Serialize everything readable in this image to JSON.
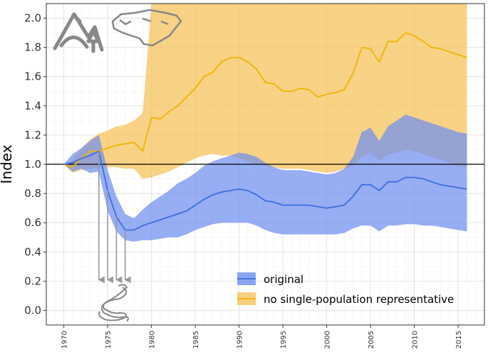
{
  "chart_data": {
    "type": "area",
    "ylabel": "Index",
    "xlabel": "",
    "xlim": [
      1968,
      2018
    ],
    "ylim": [
      -0.1,
      2.1
    ],
    "grid": true,
    "legend_position": "bottom-right",
    "baseline": 1.0,
    "x_ticks": [
      1970,
      1975,
      1980,
      1985,
      1990,
      1995,
      2000,
      2005,
      2010,
      2015
    ],
    "y_ticks": [
      "0.0",
      "0.2",
      "0.4",
      "0.6",
      "0.8",
      "1.0",
      "1.2",
      "1.4",
      "1.6",
      "1.8",
      "2.0"
    ],
    "x": [
      1970,
      1971,
      1972,
      1973,
      1974,
      1975,
      1976,
      1977,
      1978,
      1979,
      1980,
      1981,
      1982,
      1983,
      1984,
      1985,
      1986,
      1987,
      1988,
      1989,
      1990,
      1991,
      1992,
      1993,
      1994,
      1995,
      1996,
      1997,
      1998,
      1999,
      2000,
      2001,
      2002,
      2003,
      2004,
      2005,
      2006,
      2007,
      2008,
      2009,
      2010,
      2011,
      2012,
      2013,
      2014,
      2015,
      2016
    ],
    "series": [
      {
        "name": "original",
        "color": "#6f8ff0",
        "line_color": "#3b6de0",
        "values": [
          1.0,
          1.01,
          1.04,
          1.06,
          1.09,
          0.82,
          0.64,
          0.55,
          0.55,
          0.58,
          0.6,
          0.62,
          0.64,
          0.66,
          0.68,
          0.72,
          0.76,
          0.79,
          0.81,
          0.82,
          0.83,
          0.82,
          0.79,
          0.75,
          0.74,
          0.72,
          0.72,
          0.72,
          0.72,
          0.71,
          0.7,
          0.71,
          0.72,
          0.78,
          0.86,
          0.86,
          0.82,
          0.88,
          0.88,
          0.91,
          0.91,
          0.9,
          0.88,
          0.86,
          0.85,
          0.84,
          0.83
        ],
        "lower": [
          1.0,
          0.95,
          0.97,
          0.94,
          0.95,
          0.68,
          0.54,
          0.48,
          0.47,
          0.48,
          0.48,
          0.49,
          0.5,
          0.5,
          0.52,
          0.55,
          0.57,
          0.59,
          0.6,
          0.6,
          0.6,
          0.6,
          0.58,
          0.55,
          0.53,
          0.52,
          0.52,
          0.52,
          0.52,
          0.52,
          0.52,
          0.52,
          0.53,
          0.56,
          0.58,
          0.58,
          0.54,
          0.58,
          0.58,
          0.59,
          0.59,
          0.58,
          0.58,
          0.57,
          0.56,
          0.55,
          0.54
        ],
        "upper": [
          1.0,
          1.07,
          1.11,
          1.16,
          1.2,
          0.96,
          0.78,
          0.66,
          0.63,
          0.69,
          0.74,
          0.78,
          0.82,
          0.87,
          0.9,
          0.94,
          0.99,
          1.02,
          1.04,
          1.06,
          1.08,
          1.07,
          1.05,
          1.01,
          0.98,
          0.96,
          0.96,
          0.96,
          0.95,
          0.94,
          0.93,
          0.94,
          0.97,
          1.05,
          1.22,
          1.25,
          1.16,
          1.26,
          1.3,
          1.34,
          1.32,
          1.3,
          1.28,
          1.26,
          1.24,
          1.22,
          1.21
        ]
      },
      {
        "name": "no single-population representative",
        "color": "#f5c35c",
        "line_color": "#f0b400",
        "values": [
          1.0,
          0.98,
          1.04,
          1.09,
          1.09,
          1.11,
          1.13,
          1.14,
          1.15,
          1.09,
          1.32,
          1.31,
          1.36,
          1.4,
          1.46,
          1.52,
          1.6,
          1.63,
          1.7,
          1.73,
          1.73,
          1.7,
          1.65,
          1.56,
          1.55,
          1.5,
          1.5,
          1.52,
          1.51,
          1.46,
          1.48,
          1.49,
          1.51,
          1.62,
          1.8,
          1.79,
          1.7,
          1.84,
          1.84,
          1.9,
          1.88,
          1.84,
          1.8,
          1.79,
          1.77,
          1.75,
          1.73
        ],
        "lower": [
          1.0,
          0.94,
          0.96,
          0.97,
          0.98,
          0.98,
          0.98,
          0.97,
          0.97,
          0.9,
          0.91,
          0.93,
          0.95,
          0.98,
          1.01,
          1.04,
          1.06,
          1.07,
          1.06,
          1.06,
          1.04,
          1.02,
          1.0,
          0.99,
          0.98,
          0.97,
          0.97,
          0.97,
          0.96,
          0.95,
          0.94,
          0.95,
          0.97,
          0.99,
          1.05,
          1.08,
          1.02,
          1.07,
          1.08,
          1.1,
          1.09,
          1.07,
          1.05,
          1.03,
          1.01,
          0.99,
          0.98
        ],
        "upper": [
          1.0,
          1.03,
          1.11,
          1.17,
          1.21,
          1.23,
          1.26,
          1.27,
          1.3,
          1.35,
          2.1,
          2.1,
          2.1,
          2.1,
          2.1,
          2.1,
          2.1,
          2.1,
          2.1,
          2.1,
          2.1,
          2.1,
          2.1,
          2.1,
          2.1,
          2.1,
          2.1,
          2.1,
          2.1,
          2.1,
          2.1,
          2.1,
          2.1,
          2.1,
          2.1,
          2.1,
          2.1,
          2.1,
          2.1,
          2.1,
          2.1,
          2.1,
          2.1,
          2.1,
          2.1,
          2.1,
          2.1
        ]
      }
    ],
    "annotations": {
      "arrow_years": [
        1974,
        1975,
        1976,
        1977
      ],
      "icons": [
        "mountains-icon",
        "greenland-map-icon",
        "snake-icon"
      ]
    }
  }
}
